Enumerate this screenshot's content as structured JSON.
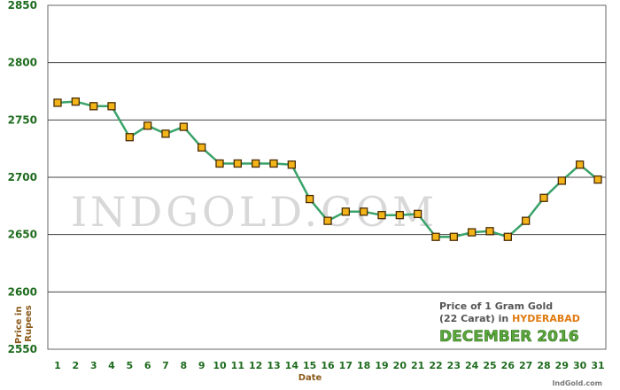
{
  "chart_data": {
    "type": "line",
    "title": "Price of 1 Gram Gold",
    "subtitle_prefix": "(22 Carat) in ",
    "city": "HYDERABAD",
    "period": "DECEMBER 2016",
    "xlabel": "Date",
    "ylabel": "Price in Rupees",
    "ylim": [
      2550,
      2850
    ],
    "yticks": [
      2550,
      2600,
      2650,
      2700,
      2750,
      2800,
      2850
    ],
    "categories": [
      "1",
      "2",
      "3",
      "4",
      "5",
      "6",
      "7",
      "8",
      "9",
      "10",
      "11",
      "12",
      "13",
      "14",
      "15",
      "16",
      "17",
      "18",
      "19",
      "20",
      "21",
      "22",
      "23",
      "24",
      "25",
      "26",
      "27",
      "28",
      "29",
      "30",
      "31"
    ],
    "series": [
      {
        "values": [
          2765,
          2766,
          2762,
          2762,
          2735,
          2745,
          2738,
          2744,
          2726,
          2712,
          2712,
          2712,
          2712,
          2711,
          2681,
          2662,
          2670,
          2670,
          2667,
          2667,
          2668,
          2648,
          2648,
          2652,
          2653,
          2648,
          2662,
          2682,
          2697,
          2711,
          2698
        ]
      }
    ],
    "grid": true,
    "line_color": "#3aa36a",
    "marker_color": "#f2b418",
    "marker_border": "#4a2d08",
    "grid_color": "#444444",
    "tick_color": "#1e6b1e"
  },
  "watermark": "INDGOLD.COM",
  "credit": "IndGold.com"
}
